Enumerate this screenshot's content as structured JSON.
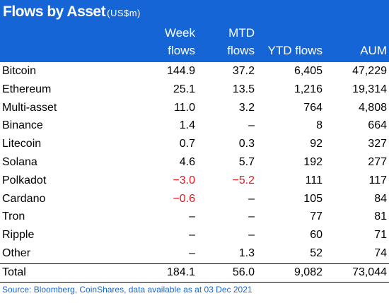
{
  "title": "Flows by Asset",
  "unit": "(US$m)",
  "table": {
    "columns": [
      "Week flows",
      "MTD flows",
      "YTD flows",
      "AUM"
    ],
    "rows": [
      [
        "Bitcoin",
        "144.9",
        "37.2",
        "6,405",
        "47,229"
      ],
      [
        "Ethereum",
        "25.1",
        "13.5",
        "1,216",
        "19,314"
      ],
      [
        "Multi-asset",
        "11.0",
        "3.2",
        "764",
        "4,808"
      ],
      [
        "Binance",
        "1.4",
        "–",
        "8",
        "664"
      ],
      [
        "Litecoin",
        "0.7",
        "0.3",
        "92",
        "327"
      ],
      [
        "Solana",
        "4.6",
        "5.7",
        "192",
        "277"
      ],
      [
        "Polkadot",
        "−3.0",
        "−5.2",
        "111",
        "117"
      ],
      [
        "Cardano",
        "−0.6",
        "–",
        "105",
        "84"
      ],
      [
        "Tron",
        "–",
        "–",
        "77",
        "81"
      ],
      [
        "Ripple",
        "–",
        "–",
        "60",
        "71"
      ],
      [
        "Other",
        "–",
        "1.3",
        "52",
        "74"
      ]
    ],
    "total": [
      "Total",
      "184.1",
      "56.0",
      "9,082",
      "73,044"
    ]
  },
  "negative_color": "#e8161b",
  "source": "Source: Bloomberg, CoinShares, data available as at 03 Dec 2021"
}
